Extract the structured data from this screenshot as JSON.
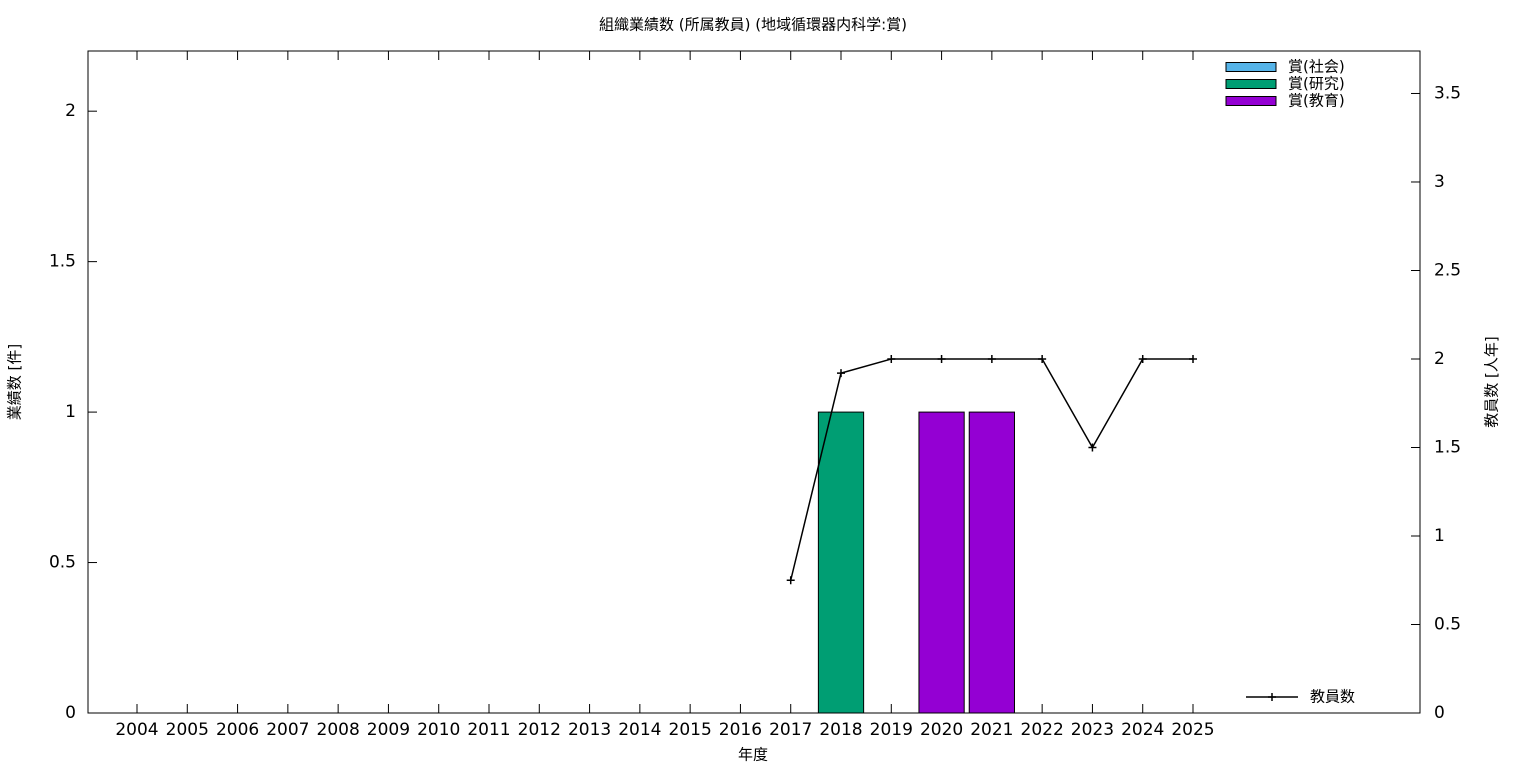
{
  "chart_data": {
    "type": "bar",
    "title": "組織業績数 (所属教員) (地域循環器内科学:賞)",
    "x_label": "年度",
    "y_label": "業績数 [件]",
    "y2_label": "教員数 [人年]",
    "categories": [
      "2004",
      "2005",
      "2006",
      "2007",
      "2008",
      "2009",
      "2010",
      "2011",
      "2012",
      "2013",
      "2014",
      "2015",
      "2016",
      "2017",
      "2018",
      "2019",
      "2020",
      "2021",
      "2022",
      "2023",
      "2024",
      "2025"
    ],
    "stacked": true,
    "series": [
      {
        "name": "賞(社会)",
        "color": "#56b4e9",
        "values": [
          0,
          0,
          0,
          0,
          0,
          0,
          0,
          0,
          0,
          0,
          0,
          0,
          0,
          0,
          0,
          0,
          0,
          0,
          0,
          0,
          0,
          0
        ]
      },
      {
        "name": "賞(研究)",
        "color": "#009e73",
        "values": [
          0,
          0,
          0,
          0,
          0,
          0,
          0,
          0,
          0,
          0,
          0,
          0,
          0,
          0,
          1,
          0,
          0,
          0,
          0,
          0,
          0,
          0
        ]
      },
      {
        "name": "賞(教育)",
        "color": "#9400d3",
        "values": [
          0,
          0,
          0,
          0,
          0,
          0,
          0,
          0,
          0,
          0,
          0,
          0,
          0,
          0,
          0,
          0,
          1,
          1,
          0,
          0,
          0,
          0
        ]
      },
      {
        "name": "教員数",
        "color": "#000000",
        "type": "line",
        "axis": "y2",
        "values": [
          null,
          null,
          null,
          null,
          null,
          null,
          null,
          null,
          null,
          null,
          null,
          null,
          null,
          0.75,
          1.92,
          2,
          2,
          2,
          2,
          1.5,
          2,
          2
        ]
      }
    ],
    "ylim": [
      0,
      2.2
    ],
    "yticks": [
      0,
      0.5,
      1,
      1.5,
      2
    ],
    "y2lim": [
      0,
      3.74
    ],
    "y2ticks": [
      0,
      0.5,
      1,
      1.5,
      2,
      2.5,
      3,
      3.5
    ]
  }
}
